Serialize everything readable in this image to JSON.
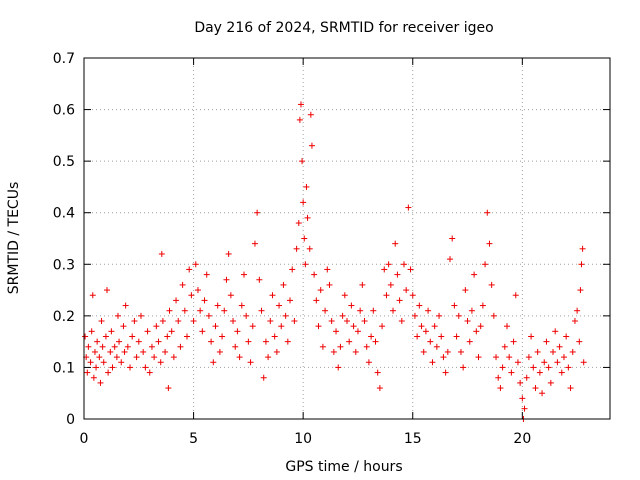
{
  "chart_data": {
    "type": "scatter",
    "title": "Day 216 of 2024, SRMTID for receiver igeo",
    "xlabel": "GPS time / hours",
    "ylabel": "SRMTID / TECUs",
    "xlim": [
      0,
      24
    ],
    "ylim": [
      0,
      0.7
    ],
    "xticks": [
      0,
      5,
      10,
      15,
      20
    ],
    "yticks": [
      0,
      0.1,
      0.2,
      0.3,
      0.4,
      0.5,
      0.6,
      0.7
    ],
    "marker": "+",
    "grid": true,
    "series": [
      {
        "name": "SRMTID",
        "color": "#ee0000",
        "points": [
          [
            0.05,
            0.16
          ],
          [
            0.1,
            0.12
          ],
          [
            0.15,
            0.09
          ],
          [
            0.2,
            0.14
          ],
          [
            0.3,
            0.11
          ],
          [
            0.35,
            0.17
          ],
          [
            0.4,
            0.24
          ],
          [
            0.45,
            0.08
          ],
          [
            0.5,
            0.13
          ],
          [
            0.55,
            0.1
          ],
          [
            0.6,
            0.15
          ],
          [
            0.7,
            0.12
          ],
          [
            0.75,
            0.07
          ],
          [
            0.8,
            0.19
          ],
          [
            0.85,
            0.14
          ],
          [
            0.9,
            0.11
          ],
          [
            1.0,
            0.16
          ],
          [
            1.05,
            0.25
          ],
          [
            1.1,
            0.09
          ],
          [
            1.2,
            0.13
          ],
          [
            1.25,
            0.17
          ],
          [
            1.3,
            0.1
          ],
          [
            1.4,
            0.14
          ],
          [
            1.5,
            0.12
          ],
          [
            1.55,
            0.2
          ],
          [
            1.6,
            0.15
          ],
          [
            1.7,
            0.11
          ],
          [
            1.8,
            0.18
          ],
          [
            1.85,
            0.13
          ],
          [
            1.9,
            0.22
          ],
          [
            2.0,
            0.14
          ],
          [
            2.1,
            0.1
          ],
          [
            2.2,
            0.16
          ],
          [
            2.3,
            0.19
          ],
          [
            2.4,
            0.12
          ],
          [
            2.5,
            0.15
          ],
          [
            2.6,
            0.2
          ],
          [
            2.7,
            0.13
          ],
          [
            2.8,
            0.1
          ],
          [
            2.9,
            0.17
          ],
          [
            3.0,
            0.09
          ],
          [
            3.1,
            0.14
          ],
          [
            3.2,
            0.12
          ],
          [
            3.3,
            0.18
          ],
          [
            3.4,
            0.15
          ],
          [
            3.5,
            0.11
          ],
          [
            3.55,
            0.32
          ],
          [
            3.6,
            0.19
          ],
          [
            3.7,
            0.13
          ],
          [
            3.8,
            0.16
          ],
          [
            3.85,
            0.06
          ],
          [
            3.9,
            0.21
          ],
          [
            4.0,
            0.17
          ],
          [
            4.1,
            0.12
          ],
          [
            4.2,
            0.23
          ],
          [
            4.3,
            0.19
          ],
          [
            4.4,
            0.14
          ],
          [
            4.5,
            0.26
          ],
          [
            4.6,
            0.21
          ],
          [
            4.7,
            0.16
          ],
          [
            4.8,
            0.29
          ],
          [
            4.9,
            0.24
          ],
          [
            5.0,
            0.19
          ],
          [
            5.1,
            0.3
          ],
          [
            5.2,
            0.25
          ],
          [
            5.3,
            0.21
          ],
          [
            5.4,
            0.17
          ],
          [
            5.5,
            0.23
          ],
          [
            5.6,
            0.28
          ],
          [
            5.7,
            0.2
          ],
          [
            5.8,
            0.15
          ],
          [
            5.9,
            0.11
          ],
          [
            6.0,
            0.18
          ],
          [
            6.1,
            0.22
          ],
          [
            6.2,
            0.13
          ],
          [
            6.3,
            0.16
          ],
          [
            6.4,
            0.21
          ],
          [
            6.5,
            0.27
          ],
          [
            6.6,
            0.32
          ],
          [
            6.7,
            0.24
          ],
          [
            6.8,
            0.19
          ],
          [
            6.9,
            0.14
          ],
          [
            7.0,
            0.17
          ],
          [
            7.1,
            0.12
          ],
          [
            7.2,
            0.22
          ],
          [
            7.3,
            0.28
          ],
          [
            7.4,
            0.2
          ],
          [
            7.5,
            0.15
          ],
          [
            7.6,
            0.11
          ],
          [
            7.7,
            0.18
          ],
          [
            7.8,
            0.34
          ],
          [
            7.9,
            0.4
          ],
          [
            8.0,
            0.27
          ],
          [
            8.1,
            0.21
          ],
          [
            8.2,
            0.08
          ],
          [
            8.3,
            0.15
          ],
          [
            8.4,
            0.12
          ],
          [
            8.5,
            0.19
          ],
          [
            8.6,
            0.24
          ],
          [
            8.7,
            0.16
          ],
          [
            8.8,
            0.13
          ],
          [
            8.9,
            0.22
          ],
          [
            9.0,
            0.18
          ],
          [
            9.1,
            0.26
          ],
          [
            9.2,
            0.2
          ],
          [
            9.3,
            0.15
          ],
          [
            9.4,
            0.23
          ],
          [
            9.5,
            0.29
          ],
          [
            9.6,
            0.19
          ],
          [
            9.7,
            0.33
          ],
          [
            9.8,
            0.38
          ],
          [
            9.85,
            0.58
          ],
          [
            9.9,
            0.61
          ],
          [
            9.95,
            0.5
          ],
          [
            10.0,
            0.42
          ],
          [
            10.05,
            0.35
          ],
          [
            10.1,
            0.3
          ],
          [
            10.15,
            0.45
          ],
          [
            10.2,
            0.39
          ],
          [
            10.3,
            0.33
          ],
          [
            10.35,
            0.59
          ],
          [
            10.4,
            0.53
          ],
          [
            10.5,
            0.28
          ],
          [
            10.6,
            0.23
          ],
          [
            10.7,
            0.18
          ],
          [
            10.8,
            0.25
          ],
          [
            10.9,
            0.14
          ],
          [
            11.0,
            0.21
          ],
          [
            11.1,
            0.29
          ],
          [
            11.2,
            0.26
          ],
          [
            11.3,
            0.19
          ],
          [
            11.4,
            0.13
          ],
          [
            11.5,
            0.17
          ],
          [
            11.6,
            0.1
          ],
          [
            11.7,
            0.14
          ],
          [
            11.8,
            0.2
          ],
          [
            11.9,
            0.24
          ],
          [
            12.0,
            0.19
          ],
          [
            12.1,
            0.15
          ],
          [
            12.2,
            0.22
          ],
          [
            12.3,
            0.18
          ],
          [
            12.4,
            0.13
          ],
          [
            12.5,
            0.17
          ],
          [
            12.6,
            0.21
          ],
          [
            12.7,
            0.26
          ],
          [
            12.8,
            0.19
          ],
          [
            12.9,
            0.14
          ],
          [
            13.0,
            0.11
          ],
          [
            13.1,
            0.16
          ],
          [
            13.2,
            0.21
          ],
          [
            13.3,
            0.15
          ],
          [
            13.4,
            0.09
          ],
          [
            13.5,
            0.06
          ],
          [
            13.6,
            0.18
          ],
          [
            13.7,
            0.29
          ],
          [
            13.8,
            0.24
          ],
          [
            13.9,
            0.3
          ],
          [
            14.0,
            0.26
          ],
          [
            14.1,
            0.21
          ],
          [
            14.2,
            0.34
          ],
          [
            14.3,
            0.28
          ],
          [
            14.4,
            0.23
          ],
          [
            14.5,
            0.19
          ],
          [
            14.6,
            0.3
          ],
          [
            14.7,
            0.25
          ],
          [
            14.8,
            0.41
          ],
          [
            14.9,
            0.29
          ],
          [
            15.0,
            0.24
          ],
          [
            15.1,
            0.2
          ],
          [
            15.2,
            0.16
          ],
          [
            15.3,
            0.22
          ],
          [
            15.4,
            0.18
          ],
          [
            15.5,
            0.13
          ],
          [
            15.6,
            0.17
          ],
          [
            15.7,
            0.21
          ],
          [
            15.8,
            0.15
          ],
          [
            15.9,
            0.11
          ],
          [
            16.0,
            0.18
          ],
          [
            16.1,
            0.14
          ],
          [
            16.2,
            0.2
          ],
          [
            16.3,
            0.16
          ],
          [
            16.4,
            0.12
          ],
          [
            16.5,
            0.09
          ],
          [
            16.6,
            0.13
          ],
          [
            16.7,
            0.31
          ],
          [
            16.8,
            0.35
          ],
          [
            16.9,
            0.22
          ],
          [
            17.0,
            0.16
          ],
          [
            17.1,
            0.2
          ],
          [
            17.2,
            0.13
          ],
          [
            17.3,
            0.1
          ],
          [
            17.4,
            0.25
          ],
          [
            17.5,
            0.19
          ],
          [
            17.6,
            0.15
          ],
          [
            17.7,
            0.21
          ],
          [
            17.8,
            0.28
          ],
          [
            17.9,
            0.17
          ],
          [
            18.0,
            0.12
          ],
          [
            18.1,
            0.18
          ],
          [
            18.2,
            0.22
          ],
          [
            18.3,
            0.3
          ],
          [
            18.4,
            0.4
          ],
          [
            18.5,
            0.34
          ],
          [
            18.6,
            0.26
          ],
          [
            18.7,
            0.2
          ],
          [
            18.8,
            0.12
          ],
          [
            18.9,
            0.08
          ],
          [
            19.0,
            0.06
          ],
          [
            19.1,
            0.1
          ],
          [
            19.2,
            0.14
          ],
          [
            19.3,
            0.18
          ],
          [
            19.4,
            0.12
          ],
          [
            19.5,
            0.09
          ],
          [
            19.6,
            0.15
          ],
          [
            19.7,
            0.24
          ],
          [
            19.8,
            0.11
          ],
          [
            19.9,
            0.07
          ],
          [
            20.0,
            0.04
          ],
          [
            20.05,
            0.0
          ],
          [
            20.1,
            0.02
          ],
          [
            20.2,
            0.08
          ],
          [
            20.3,
            0.12
          ],
          [
            20.4,
            0.16
          ],
          [
            20.5,
            0.1
          ],
          [
            20.6,
            0.06
          ],
          [
            20.7,
            0.13
          ],
          [
            20.8,
            0.09
          ],
          [
            20.9,
            0.05
          ],
          [
            21.0,
            0.11
          ],
          [
            21.1,
            0.15
          ],
          [
            21.2,
            0.1
          ],
          [
            21.3,
            0.07
          ],
          [
            21.4,
            0.13
          ],
          [
            21.5,
            0.17
          ],
          [
            21.6,
            0.11
          ],
          [
            21.7,
            0.14
          ],
          [
            21.8,
            0.09
          ],
          [
            21.9,
            0.12
          ],
          [
            22.0,
            0.16
          ],
          [
            22.1,
            0.1
          ],
          [
            22.2,
            0.06
          ],
          [
            22.3,
            0.13
          ],
          [
            22.4,
            0.19
          ],
          [
            22.5,
            0.21
          ],
          [
            22.6,
            0.15
          ],
          [
            22.65,
            0.25
          ],
          [
            22.7,
            0.3
          ],
          [
            22.75,
            0.33
          ],
          [
            22.8,
            0.11
          ]
        ]
      }
    ]
  }
}
